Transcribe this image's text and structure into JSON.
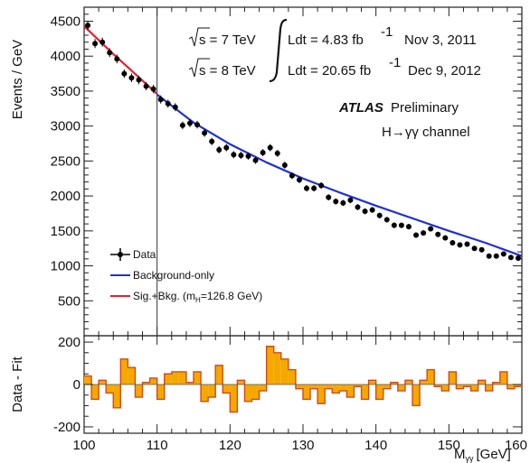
{
  "chart_data": [
    {
      "type": "scatter",
      "panel": "main",
      "ylabel": "Events / GeV",
      "xlim": [
        100,
        160
      ],
      "ylim": [
        0,
        4700
      ],
      "yticks": [
        500,
        1000,
        1500,
        2000,
        2500,
        3000,
        3500,
        4000,
        4500
      ],
      "yticklabels": [
        "500",
        "1000",
        "1500",
        "2000",
        "2500",
        "3000",
        "3500",
        "4000",
        "4500"
      ],
      "grid": false,
      "vline_x": 110,
      "series": [
        {
          "name": "Data",
          "kind": "points",
          "color": "#000000",
          "x": [
            100.5,
            101.5,
            102.5,
            103.5,
            104.5,
            105.5,
            106.5,
            107.5,
            108.5,
            109.5,
            110.5,
            111.5,
            112.5,
            113.5,
            114.5,
            115.5,
            116.5,
            117.5,
            118.5,
            119.5,
            120.5,
            121.5,
            122.5,
            123.5,
            124.5,
            125.5,
            126.5,
            127.5,
            128.5,
            129.5,
            130.5,
            131.5,
            132.5,
            133.5,
            134.5,
            135.5,
            136.5,
            137.5,
            138.5,
            139.5,
            140.5,
            141.5,
            142.5,
            143.5,
            144.5,
            145.5,
            146.5,
            147.5,
            148.5,
            149.5,
            150.5,
            151.5,
            152.5,
            153.5,
            154.5,
            155.5,
            156.5,
            157.5,
            158.5,
            159.5
          ],
          "y": [
            4440,
            4180,
            4200,
            4050,
            3960,
            3750,
            3690,
            3660,
            3570,
            3530,
            3380,
            3320,
            3270,
            3010,
            3040,
            3020,
            2900,
            2780,
            2660,
            2690,
            2590,
            2580,
            2570,
            2510,
            2620,
            2690,
            2610,
            2440,
            2290,
            2230,
            2110,
            2110,
            2150,
            1980,
            1920,
            1900,
            1940,
            1840,
            1780,
            1800,
            1720,
            1660,
            1580,
            1580,
            1560,
            1440,
            1470,
            1530,
            1450,
            1400,
            1330,
            1300,
            1310,
            1250,
            1230,
            1140,
            1140,
            1170,
            1120,
            1110
          ]
        },
        {
          "name": "Background-only",
          "kind": "line",
          "color": "#1f2fd8",
          "x": [
            110,
            115,
            120,
            125,
            130,
            135,
            140,
            145,
            150,
            155,
            160
          ],
          "y": [
            3450,
            3050,
            2740,
            2480,
            2250,
            2050,
            1860,
            1680,
            1500,
            1330,
            1140
          ]
        },
        {
          "name": "Sig.+Bkg. (m",
          "name_subscript": "H",
          "name_suffix": "=126.8 GeV)",
          "kind": "line",
          "color": "#e8202a",
          "x": [
            100,
            102,
            104,
            106,
            108,
            110
          ],
          "y": [
            4430,
            4230,
            4030,
            3840,
            3650,
            3460
          ]
        }
      ],
      "legend": {
        "position": "bottom-left"
      },
      "annotations": {
        "line1": {
          "sqrt_s": "s = 7 TeV",
          "lumi": "Ldt = 4.83 fb",
          "lumi_exp": "-1",
          "date": "Nov 3, 2011"
        },
        "line2": {
          "sqrt_s": "s = 8 TeV",
          "lumi": "Ldt = 20.65 fb",
          "lumi_exp": "-1",
          "date": "Dec 9, 2012"
        },
        "atlas": "ATLAS",
        "preliminary": "Preliminary",
        "channel": "H→γγ channel"
      }
    },
    {
      "type": "bar",
      "panel": "ratio",
      "ylabel": "Data - Fit",
      "xlabel": "M",
      "xlabel_subscript": "γγ",
      "xlabel_unit": "[GeV]",
      "xlim": [
        100,
        160
      ],
      "ylim": [
        -230,
        230
      ],
      "xticks": [
        100,
        110,
        120,
        130,
        140,
        150,
        160
      ],
      "xticklabels": [
        "100",
        "110",
        "120",
        "130",
        "140",
        "150",
        "160"
      ],
      "yticks": [
        -200,
        0,
        200
      ],
      "yticklabels": [
        "-200",
        "0",
        "200"
      ],
      "fill_color": "#f5a800",
      "edge_color": "#d24a1e",
      "bin_edges": [
        100,
        101,
        102,
        103,
        104,
        105,
        106,
        107,
        108,
        109,
        110,
        111,
        112,
        113,
        114,
        115,
        116,
        117,
        118,
        119,
        120,
        121,
        122,
        123,
        124,
        125,
        126,
        127,
        128,
        129,
        130,
        131,
        132,
        133,
        134,
        135,
        136,
        137,
        138,
        139,
        140,
        141,
        142,
        143,
        144,
        145,
        146,
        147,
        148,
        149,
        150,
        151,
        152,
        153,
        154,
        155,
        156,
        157,
        158,
        159,
        160
      ],
      "values": [
        40,
        -70,
        20,
        -40,
        -110,
        120,
        80,
        -60,
        10,
        30,
        -70,
        50,
        60,
        60,
        10,
        60,
        -80,
        -60,
        90,
        -40,
        -130,
        20,
        -80,
        -70,
        -30,
        180,
        150,
        120,
        70,
        -20,
        -70,
        -20,
        -90,
        -20,
        -40,
        -30,
        -60,
        -10,
        -70,
        20,
        -70,
        -20,
        10,
        -30,
        20,
        -100,
        20,
        70,
        -10,
        -30,
        60,
        -20,
        -10,
        -30,
        20,
        -30,
        10,
        60,
        -20,
        -10
      ]
    }
  ]
}
